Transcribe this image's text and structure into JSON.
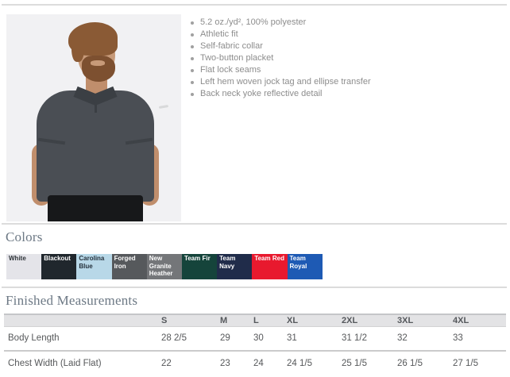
{
  "product": {
    "features": [
      "5.2 oz./yd², 100% polyester",
      "Athletic fit",
      "Self-fabric collar",
      "Two-button placket",
      "Flat lock seams",
      "Left hem woven jock tag and ellipse transfer",
      "Back neck yoke reflective detail"
    ]
  },
  "colors": {
    "title": "Colors",
    "swatches": [
      {
        "name": "White",
        "hex": "#e4e4e9",
        "text": "#2e3338"
      },
      {
        "name": "Blackout",
        "hex": "#20272d",
        "text": "#ffffff"
      },
      {
        "name": "Carolina Blue",
        "hex": "#b8d8e8",
        "text": "#25313c"
      },
      {
        "name": "Forged Iron",
        "hex": "#56595c",
        "text": "#ffffff"
      },
      {
        "name": "New Granite Heather",
        "hex": "#747679",
        "text": "#ffffff"
      },
      {
        "name": "Team Fir",
        "hex": "#15443b",
        "text": "#ffffff"
      },
      {
        "name": "Team Navy",
        "hex": "#202c4a",
        "text": "#ffffff"
      },
      {
        "name": "Team Red",
        "hex": "#e8192e",
        "text": "#ffffff"
      },
      {
        "name": "Team Royal",
        "hex": "#1e5ab4",
        "text": "#ffffff"
      }
    ]
  },
  "measurements": {
    "title": "Finished Measurements",
    "columns": [
      "S",
      "M",
      "L",
      "XL",
      "2XL",
      "3XL",
      "4XL"
    ],
    "rows": [
      {
        "label": "Body Length",
        "values": [
          "28 2/5",
          "29",
          "30",
          "31",
          "31 1/2",
          "32",
          "33"
        ]
      },
      {
        "label": "Chest Width (Laid Flat)",
        "values": [
          "22",
          "23",
          "24",
          "24 1/5",
          "25 1/5",
          "26 1/5",
          "27 1/5"
        ]
      }
    ]
  }
}
